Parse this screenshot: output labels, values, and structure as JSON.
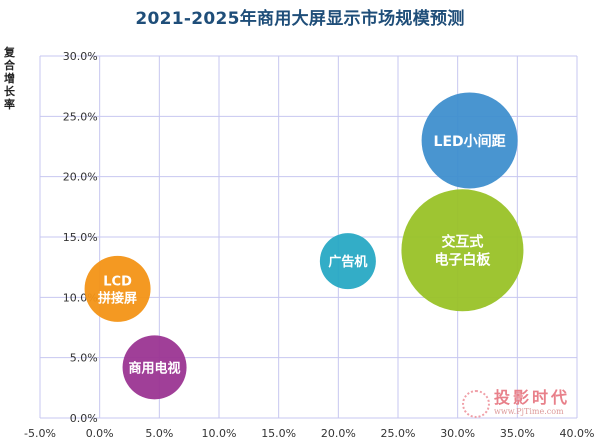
{
  "chart_data": {
    "type": "bubble",
    "title": "2021-2025年商用大屏显示市场规模预测",
    "xlabel": "",
    "ylabel": "复合增长率",
    "xlim": [
      -0.05,
      0.4
    ],
    "ylim": [
      0.0,
      0.3
    ],
    "x_ticks": [
      "-5.0%",
      "0.0%",
      "5.0%",
      "10.0%",
      "15.0%",
      "20.0%",
      "25.0%",
      "30.0%",
      "35.0%",
      "40.0%"
    ],
    "y_ticks": [
      "0.0%",
      "5.0%",
      "10.0%",
      "15.0%",
      "20.0%",
      "25.0%",
      "30.0%"
    ],
    "x_tick_values": [
      -0.05,
      0,
      0.05,
      0.1,
      0.15,
      0.2,
      0.25,
      0.3,
      0.35,
      0.4
    ],
    "y_tick_values": [
      0,
      0.05,
      0.1,
      0.15,
      0.2,
      0.25,
      0.3
    ],
    "grid": true,
    "series": [
      {
        "name": "LCD拼接屏",
        "label_lines": [
          "LCD",
          "拼接屏"
        ],
        "x": 0.015,
        "y": 0.107,
        "size": 33,
        "color": "#f39316"
      },
      {
        "name": "商用电视",
        "label_lines": [
          "商用电视"
        ],
        "x": 0.046,
        "y": 0.042,
        "size": 32,
        "color": "#9b3592"
      },
      {
        "name": "广告机",
        "label_lines": [
          "广告机"
        ],
        "x": 0.208,
        "y": 0.13,
        "size": 28,
        "color": "#28a9c4"
      },
      {
        "name": "LED小间距",
        "label_lines": [
          "LED小间距"
        ],
        "x": 0.31,
        "y": 0.23,
        "size": 48,
        "color": "#3f8fce"
      },
      {
        "name": "交互式电子白板",
        "label_lines": [
          "交互式",
          "电子白板"
        ],
        "x": 0.304,
        "y": 0.139,
        "size": 61,
        "color": "#99c227"
      }
    ]
  },
  "watermark": {
    "cn": "投影时代",
    "en": "www.PjTime.com"
  }
}
